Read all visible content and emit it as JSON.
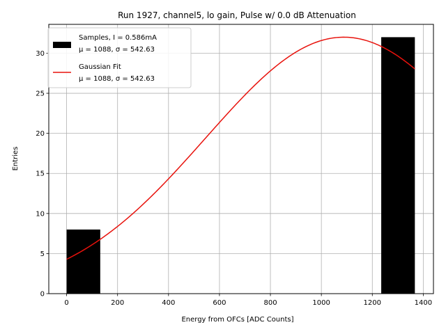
{
  "chart_data": {
    "type": "bar",
    "title": "Run 1927, channel5, lo gain, Pulse w/ 0.0 dB Attenuation",
    "xlabel": "Energy from OFCs [ADC Counts]",
    "ylabel": "Entries",
    "xlim": [
      -70,
      1440
    ],
    "ylim": [
      0,
      33.6
    ],
    "xticks": [
      0,
      200,
      400,
      600,
      800,
      1000,
      1200,
      1400
    ],
    "yticks": [
      0,
      5,
      10,
      15,
      20,
      25,
      30
    ],
    "grid": true,
    "histogram": {
      "name": "Samples, I = 0.586mA",
      "bins": [
        {
          "left": 0,
          "right": 132,
          "count": 8
        },
        {
          "left": 1235,
          "right": 1367,
          "count": 32
        }
      ],
      "color": "#000000"
    },
    "fit": {
      "name": "Gaussian Fit",
      "type": "gaussian",
      "amplitude": 32.0,
      "mu": 1088,
      "sigma": 542.63,
      "x_range": [
        0,
        1367
      ],
      "color": "#e8120c"
    },
    "legend": {
      "location": "upper-left",
      "entries": [
        {
          "line1": "Samples, I = 0.586mA",
          "line2": "μ = 1088, σ = 542.63"
        },
        {
          "line1": "Gaussian Fit",
          "line2": "μ = 1088, σ = 542.63"
        }
      ]
    }
  }
}
